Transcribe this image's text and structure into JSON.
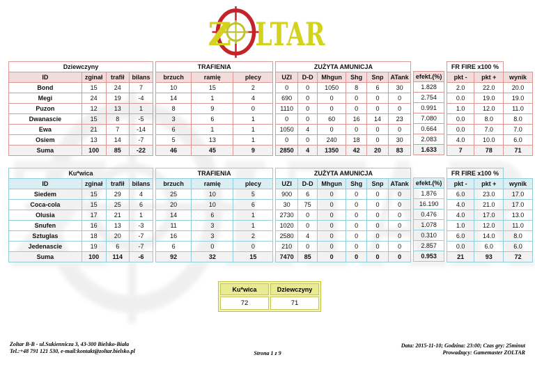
{
  "logo": {
    "z": "Z",
    "ltar": "LTAR",
    "colors": {
      "yellow": "#d3d31f",
      "red": "#c6222a"
    }
  },
  "columns": [
    "ID",
    "zginał",
    "trafił",
    "bilans",
    "brzuch",
    "ramię",
    "plecy",
    "UZI",
    "D-D",
    "Mhgun",
    "Shg",
    "Snp",
    "ATank",
    "efekt.(%)",
    "pkt -",
    "pkt +",
    "wynik"
  ],
  "labels": {
    "trafienia": "TRAFIENIA",
    "amunicja": "ZUŻYTA AMUNICJA",
    "frfire": "FR FIRE x100 %"
  },
  "tables": [
    {
      "name": "Dziewczyny",
      "theme": {
        "border": "#d99694",
        "fill": "#f2dcdb"
      },
      "rows": [
        [
          "Bond",
          "15",
          "24",
          "7",
          "10",
          "15",
          "2",
          "0",
          "0",
          "1050",
          "8",
          "6",
          "30",
          "1.828",
          "2.0",
          "22.0",
          "20.0"
        ],
        [
          "Megi",
          "24",
          "19",
          "-4",
          "14",
          "1",
          "4",
          "690",
          "0",
          "0",
          "0",
          "0",
          "0",
          "2.754",
          "0.0",
          "19.0",
          "19.0"
        ],
        [
          "Puzon",
          "12",
          "13",
          "1",
          "8",
          "9",
          "0",
          "1110",
          "0",
          "0",
          "0",
          "0",
          "0",
          "0.991",
          "1.0",
          "12.0",
          "11.0"
        ],
        [
          "Dwanascie",
          "15",
          "8",
          "-5",
          "3",
          "6",
          "1",
          "0",
          "0",
          "60",
          "16",
          "14",
          "23",
          "7.080",
          "0.0",
          "8.0",
          "8.0"
        ],
        [
          "Ewa",
          "21",
          "7",
          "-14",
          "6",
          "1",
          "1",
          "1050",
          "4",
          "0",
          "0",
          "0",
          "0",
          "0.664",
          "0.0",
          "7.0",
          "7.0"
        ],
        [
          "Osiem",
          "13",
          "14",
          "-7",
          "5",
          "13",
          "1",
          "0",
          "0",
          "240",
          "18",
          "0",
          "30",
          "2.083",
          "4.0",
          "10.0",
          "6.0"
        ]
      ],
      "suma": [
        "Suma",
        "100",
        "85",
        "-22",
        "46",
        "45",
        "9",
        "2850",
        "4",
        "1350",
        "42",
        "20",
        "83",
        "1.633",
        "7",
        "78",
        "71"
      ]
    },
    {
      "name": "Ku*wica",
      "theme": {
        "border": "#92cddc",
        "fill": "#daeef3"
      },
      "rows": [
        [
          "Siedem",
          "15",
          "29",
          "4",
          "25",
          "10",
          "5",
          "900",
          "6",
          "0",
          "0",
          "0",
          "0",
          "1.876",
          "6.0",
          "23.0",
          "17.0"
        ],
        [
          "Coca-cola",
          "15",
          "25",
          "6",
          "20",
          "10",
          "6",
          "30",
          "75",
          "0",
          "0",
          "0",
          "0",
          "16.190",
          "4.0",
          "21.0",
          "17.0"
        ],
        [
          "Olusia",
          "17",
          "21",
          "1",
          "14",
          "6",
          "1",
          "2730",
          "0",
          "0",
          "0",
          "0",
          "0",
          "0.476",
          "4.0",
          "17.0",
          "13.0"
        ],
        [
          "Snufen",
          "16",
          "13",
          "-3",
          "11",
          "3",
          "1",
          "1020",
          "0",
          "0",
          "0",
          "0",
          "0",
          "1.078",
          "1.0",
          "12.0",
          "11.0"
        ],
        [
          "Sztuglas",
          "18",
          "20",
          "-7",
          "16",
          "3",
          "2",
          "2580",
          "4",
          "0",
          "0",
          "0",
          "0",
          "0.310",
          "6.0",
          "14.0",
          "8.0"
        ],
        [
          "Jedenascie",
          "19",
          "6",
          "-7",
          "6",
          "0",
          "0",
          "210",
          "0",
          "0",
          "0",
          "0",
          "0",
          "2.857",
          "0.0",
          "6.0",
          "6.0"
        ]
      ],
      "suma": [
        "Suma",
        "100",
        "114",
        "-6",
        "92",
        "32",
        "15",
        "7470",
        "85",
        "0",
        "0",
        "0",
        "0",
        "0.953",
        "21",
        "93",
        "72"
      ]
    }
  ],
  "summary": {
    "headers": [
      "Ku*wica",
      "Dziewczyny"
    ],
    "values": [
      "72",
      "71"
    ],
    "theme": {
      "border": "#c2c23f",
      "header_fill": "#eaea92"
    }
  },
  "footer": {
    "left_line1": "Zoltar B-B - ul.Sukiennicza 3, 43-300 Bielsko-Biała",
    "left_line2": "Tel.:+48 791 121 530, e-mail:kontakt@zoltar.bielsko.pl",
    "center": "Strona 1 z 9",
    "right_line1": "Data: 2015-11-10; Godzina: 23:00; Czas gry: 25minut",
    "right_line2": "Prowadzący: Gamemaster ZOLTAR"
  }
}
